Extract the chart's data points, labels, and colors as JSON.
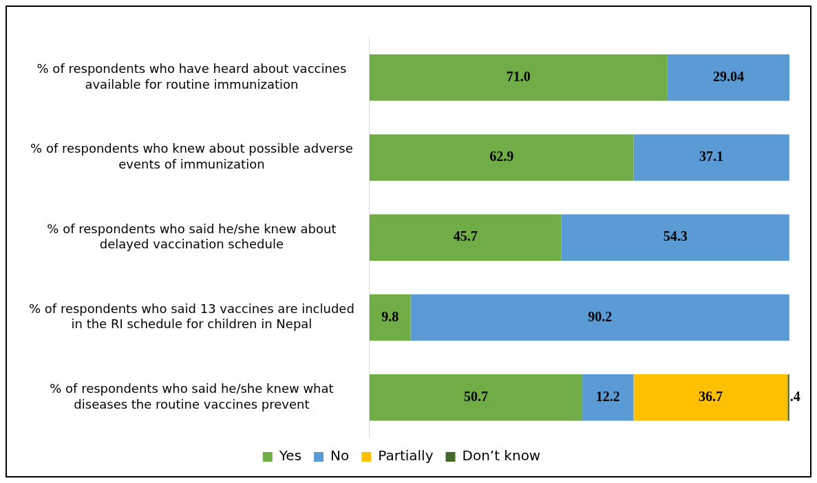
{
  "chart_data": {
    "type": "bar",
    "orientation": "horizontal",
    "stacked": true,
    "legend": "bottom",
    "categories": [
      "% of respondents who have heard about vaccines available for routine immunization",
      "% of respondents who knew about possible adverse events of immunization",
      "% of respondents who said he/she knew about delayed vaccination schedule",
      "% of respondents who said 13 vaccines are included in the RI schedule for children in Nepal",
      "% of respondents who said he/she knew what diseases the routine vaccines prevent"
    ],
    "series": [
      {
        "name": "Yes",
        "color": "#70ad47",
        "values": [
          71.0,
          62.9,
          45.7,
          9.8,
          50.7
        ],
        "value_labels": [
          "71.0",
          "62.9",
          "45.7",
          "9.8",
          "50.7"
        ]
      },
      {
        "name": "No",
        "color": "#5b9bd5",
        "values": [
          29.04,
          37.1,
          54.3,
          90.2,
          12.2
        ],
        "value_labels": [
          "29.04",
          "37.1",
          "54.3",
          "90.2",
          "12.2"
        ]
      },
      {
        "name": "Partially",
        "color": "#ffc000",
        "values": [
          null,
          null,
          null,
          null,
          36.7
        ],
        "value_labels": [
          null,
          null,
          null,
          null,
          "36.7"
        ]
      },
      {
        "name": "Don’t know",
        "color": "#43682b",
        "values": [
          null,
          null,
          null,
          null,
          0.4
        ],
        "value_labels": [
          null,
          null,
          null,
          null,
          ".4"
        ]
      }
    ]
  }
}
